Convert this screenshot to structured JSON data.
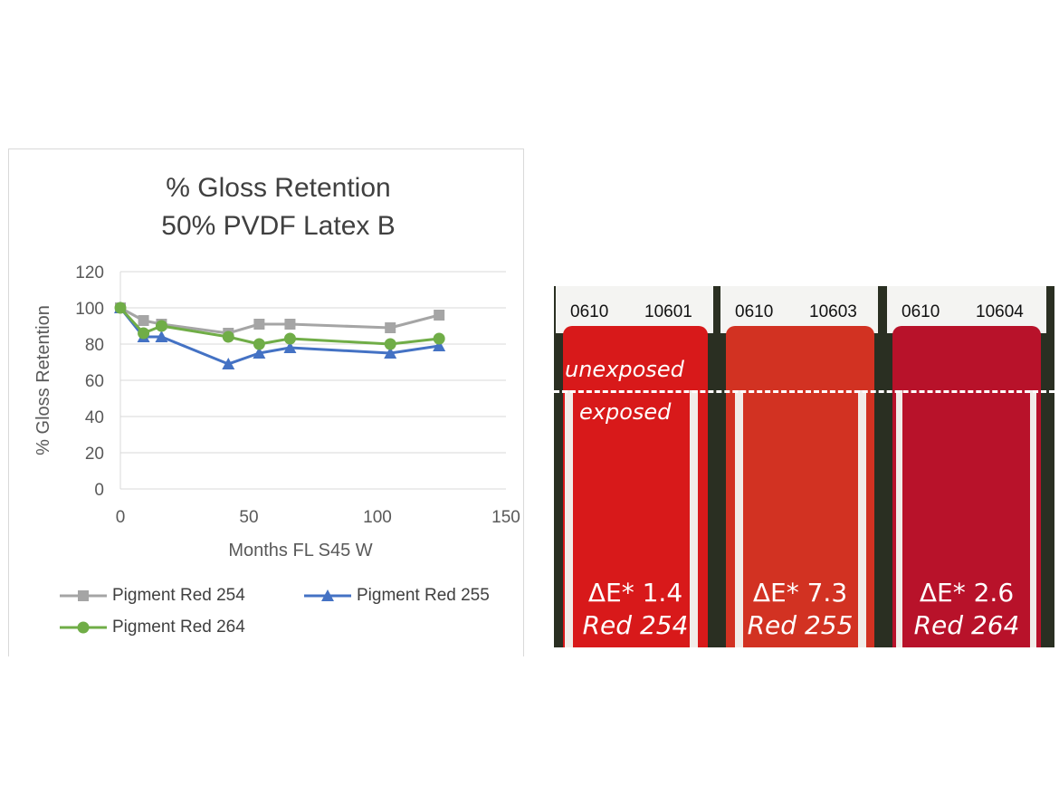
{
  "chart_data": {
    "type": "line",
    "title": "% Gloss Retention",
    "subtitle": "50% PVDF Latex B",
    "xlabel": "Months FL S45 W",
    "ylabel": "% Gloss Retention",
    "xlim": [
      0,
      150
    ],
    "ylim": [
      0,
      120
    ],
    "xticks": [
      0,
      50,
      100,
      150
    ],
    "yticks": [
      0,
      20,
      40,
      60,
      80,
      100,
      120
    ],
    "grid": true,
    "legend_placement": "bottom",
    "series": [
      {
        "name": "Pigment Red 254",
        "color": "#a5a5a5",
        "marker": "square",
        "x": [
          0,
          9,
          16,
          42,
          54,
          66,
          105,
          124
        ],
        "y": [
          100,
          93,
          91,
          86,
          91,
          91,
          89,
          96
        ]
      },
      {
        "name": "Pigment Red 255",
        "color": "#4472c4",
        "marker": "triangle",
        "x": [
          0,
          9,
          16,
          42,
          54,
          66,
          105,
          124
        ],
        "y": [
          100,
          84,
          84,
          69,
          75,
          78,
          75,
          79
        ]
      },
      {
        "name": "Pigment Red 264",
        "color": "#70ad47",
        "marker": "circle",
        "x": [
          0,
          9,
          16,
          42,
          54,
          66,
          105,
          124
        ],
        "y": [
          100,
          86,
          90,
          84,
          80,
          83,
          80,
          83
        ]
      }
    ]
  },
  "photo": {
    "unexposed_label": "unexposed",
    "exposed_label": "exposed",
    "panels": [
      {
        "code_left": "0610",
        "code_right": "10601",
        "delta_e": "ΔE* 1.4",
        "name": "Red 254",
        "color": "#d8191a"
      },
      {
        "code_left": "0610",
        "code_right": "10603",
        "delta_e": "ΔE* 7.3",
        "name": "Red 255",
        "color": "#d23222"
      },
      {
        "code_left": "0610",
        "code_right": "10604",
        "delta_e": "ΔE* 2.6",
        "name": "Red 264",
        "color": "#b8122a"
      }
    ]
  }
}
